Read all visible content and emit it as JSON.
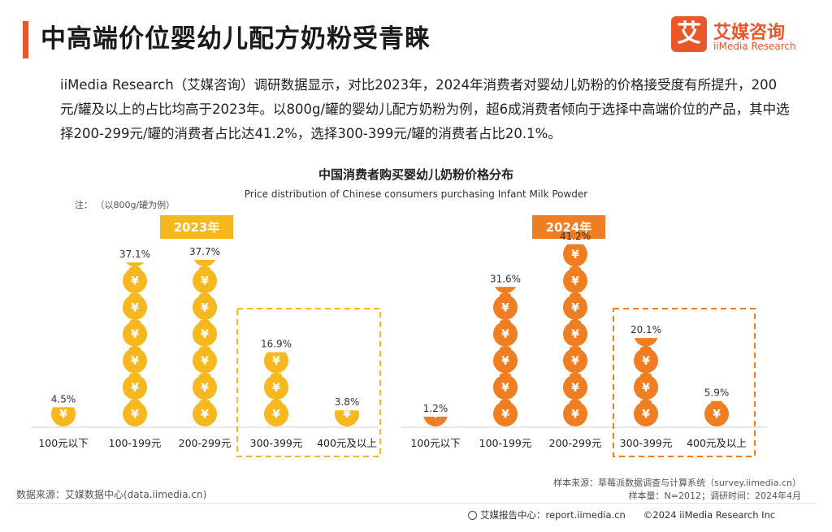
{
  "page": {
    "title": "中高端价位婴幼儿配方奶粉受青睐",
    "intro": "iiMedia Research（艾媒咨询）调研数据显示，对比2023年，2024年消费者对婴幼儿奶粉的价格接受度有所提升，200元/罐及以上的占比均高于2023年。以800g/罐的婴幼儿配方奶粉为例，超6成消费者倾向于选择中高端价位的产品，其中选择200-299元/罐的消费者占比达41.2%，选择300-399元/罐的消费者占比20.1%。"
  },
  "logo": {
    "cn": "艾媒咨询",
    "en": "iiMedia Research",
    "mark": "艾"
  },
  "note": "注：  （以800g/罐为例）",
  "source": {
    "left": "数据来源：艾媒数据中心(data.iimedia.cn)",
    "right1": "样本来源：草莓派数据调查与计算系统（survey.iimedia.cn）",
    "right2": "样本量：N=2012；调研时间：2024年4月"
  },
  "footer": {
    "report": "艾媒报告中心：report.iimedia.cn",
    "copyright": "©2024  iiMedia Research  Inc"
  },
  "colors": {
    "accent": "#e8562a",
    "y2023": "#f7b81f",
    "y2024": "#ef7d22"
  },
  "chart_data": {
    "type": "bar",
    "title": "中国消费者购买婴幼儿奶粉价格分布",
    "subtitle": "Price distribution of Chinese consumers purchasing Infant Milk Powder",
    "categories": [
      "100元以下",
      "100-199元",
      "200-299元",
      "300-399元",
      "400元及以上"
    ],
    "series": [
      {
        "name": "2023年",
        "values": [
          4.5,
          37.1,
          37.7,
          16.9,
          3.8
        ],
        "labels": [
          "4.5%",
          "37.1%",
          "37.7%",
          "16.9%",
          "3.8%"
        ]
      },
      {
        "name": "2024年",
        "values": [
          1.2,
          31.6,
          41.2,
          20.1,
          5.9
        ],
        "labels": [
          "1.2%",
          "31.6%",
          "41.2%",
          "20.1%",
          "5.9%"
        ]
      }
    ],
    "unit_value": 6.0,
    "highlight_categories": [
      "300-399元",
      "400元及以上"
    ],
    "bar_symbol": "¥"
  }
}
